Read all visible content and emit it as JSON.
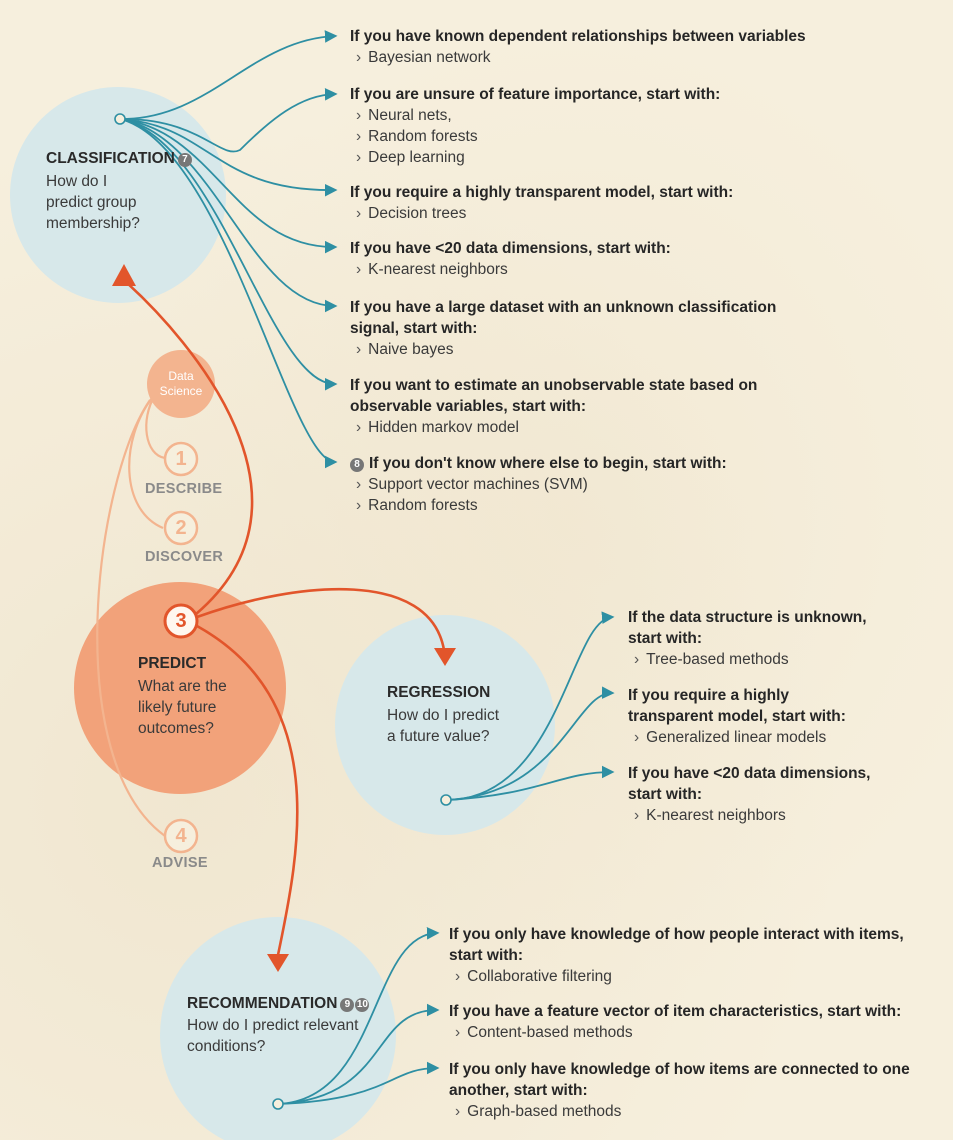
{
  "colors": {
    "teal": "#2e8fa3",
    "orange": "#e2552b",
    "peach": "#f3b48f",
    "light_peach": "#f2c8ab",
    "blue_circle": "#d7e8ea",
    "predict_fill": "#f2a27a"
  },
  "center": {
    "label": "Data Science"
  },
  "stages": [
    {
      "num": "1",
      "label": "DESCRIBE"
    },
    {
      "num": "2",
      "label": "DISCOVER"
    },
    {
      "num": "3",
      "label": "PREDICT",
      "question": [
        "What are the",
        "likely future",
        "outcomes?"
      ]
    },
    {
      "num": "4",
      "label": "ADVISE"
    }
  ],
  "classification": {
    "title": "CLASSIFICATION",
    "badge": "7",
    "question": [
      "How do I",
      "predict group",
      "membership?"
    ],
    "branches": [
      {
        "head": [
          "If you have known dependent relationships between variables"
        ],
        "items": [
          "Bayesian network"
        ]
      },
      {
        "head": [
          "If you are unsure of feature importance, start with:"
        ],
        "items": [
          "Neural nets,",
          "Random forests",
          "Deep learning"
        ]
      },
      {
        "head": [
          "If you require a highly transparent model, start with:"
        ],
        "items": [
          "Decision trees"
        ]
      },
      {
        "head": [
          "If you have <20 data dimensions, start with:"
        ],
        "items": [
          "K-nearest neighbors"
        ]
      },
      {
        "head": [
          "If you have a large dataset with an unknown classification",
          "signal, start with:"
        ],
        "items": [
          "Naive bayes"
        ]
      },
      {
        "head": [
          "If you want to estimate an unobservable state based on",
          "observable variables, start with:"
        ],
        "items": [
          "Hidden markov model"
        ]
      },
      {
        "badge": "8",
        "head": [
          "If you don't know where else to begin, start with:"
        ],
        "items": [
          "Support vector machines (SVM)",
          "Random forests"
        ]
      }
    ]
  },
  "regression": {
    "title": "REGRESSION",
    "question": [
      "How do I predict",
      "a future value?"
    ],
    "branches": [
      {
        "head": [
          "If the data structure is unknown,",
          "start with:"
        ],
        "items": [
          "Tree-based methods"
        ]
      },
      {
        "head": [
          "If you require a highly",
          "transparent model, start with:"
        ],
        "items": [
          "Generalized linear models"
        ]
      },
      {
        "head": [
          "If you have <20 data dimensions,",
          "start with:"
        ],
        "items": [
          "K-nearest neighbors"
        ]
      }
    ]
  },
  "recommendation": {
    "title": "RECOMMENDATION",
    "badges": [
      "9",
      "10"
    ],
    "question": [
      "How do I predict relevant",
      "conditions?"
    ],
    "branches": [
      {
        "head": [
          "If you only have knowledge of how people interact with items,",
          "start with:"
        ],
        "items": [
          "Collaborative filtering"
        ]
      },
      {
        "head": [
          "If you have a feature vector of item characteristics, start with:"
        ],
        "items": [
          "Content-based methods"
        ]
      },
      {
        "head": [
          "If you only have knowledge of how items are connected to one",
          "another, start with:"
        ],
        "items": [
          "Graph-based methods"
        ]
      }
    ]
  }
}
